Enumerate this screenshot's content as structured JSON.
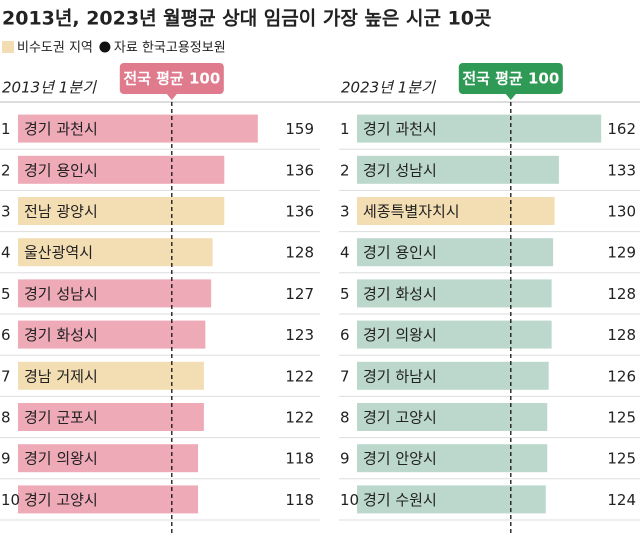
{
  "title": "2013년, 2023년 월평균 상대 임금이 가장 높은 시군 10곳",
  "legend": [
    {
      "name": "비수도권 지역",
      "color": "#f3ddb3"
    },
    {
      "name": "자료 한국고용정보원"
    }
  ],
  "chart_data": [
    {
      "type": "bar",
      "orientation": "horizontal",
      "subtitle": "2013년 1분기",
      "reference": {
        "label": "전국 평균 100",
        "value": 100,
        "color": "#e07a8d"
      },
      "ranks": [
        1,
        2,
        3,
        4,
        5,
        6,
        7,
        8,
        9,
        10
      ],
      "categories": [
        "경기 과천시",
        "경기 용인시",
        "전남 광양시",
        "울산광역시",
        "경기 성남시",
        "경기 화성시",
        "경남 거제시",
        "경기 군포시",
        "경기 의왕시",
        "경기 고양시"
      ],
      "values": [
        159,
        136,
        136,
        128,
        127,
        123,
        122,
        122,
        118,
        118
      ],
      "colors": [
        "#eeaab6",
        "#eeaab6",
        "#f3ddb3",
        "#f3ddb3",
        "#eeaab6",
        "#eeaab6",
        "#f3ddb3",
        "#eeaab6",
        "#eeaab6",
        "#eeaab6"
      ]
    },
    {
      "type": "bar",
      "orientation": "horizontal",
      "subtitle": "2023년 1분기",
      "reference": {
        "label": "전국 평균 100",
        "value": 100,
        "color": "#2f9a55"
      },
      "ranks": [
        1,
        2,
        3,
        4,
        5,
        6,
        7,
        8,
        9,
        10
      ],
      "categories": [
        "경기 과천시",
        "경기 성남시",
        "세종특별자치시",
        "경기 용인시",
        "경기 화성시",
        "경기 의왕시",
        "경기 하남시",
        "경기 고양시",
        "경기 안양시",
        "경기 수원시"
      ],
      "values": [
        162,
        133,
        130,
        129,
        128,
        128,
        126,
        125,
        125,
        124
      ],
      "colors": [
        "#bcd8cd",
        "#bcd8cd",
        "#f3ddb3",
        "#bcd8cd",
        "#bcd8cd",
        "#bcd8cd",
        "#bcd8cd",
        "#bcd8cd",
        "#bcd8cd",
        "#bcd8cd"
      ]
    }
  ]
}
